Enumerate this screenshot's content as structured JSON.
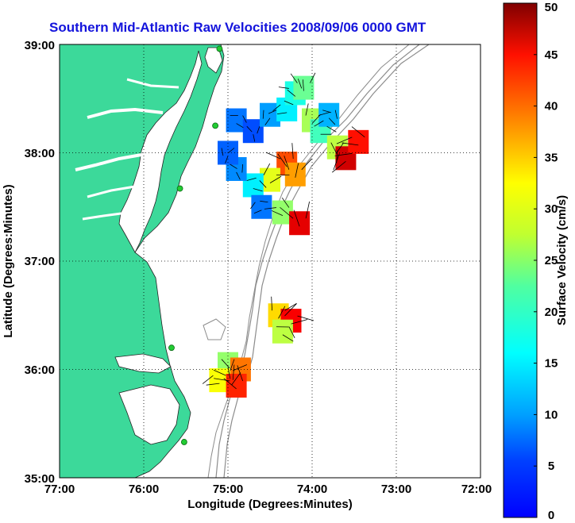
{
  "chart_data": {
    "type": "heatmap",
    "title": "Southern Mid-Atlantic Raw Velocities 2008/09/06 0000 GMT",
    "xlabel": "Longitude (Degrees:Minutes)",
    "ylabel": "Latitude (Degrees:Minutes)",
    "colorbar_label": "Surface Velocity (cm/s)",
    "x_ticks": [
      "77:00",
      "76:00",
      "75:00",
      "74:00",
      "73:00",
      "72:00"
    ],
    "y_ticks": [
      "35:00",
      "36:00",
      "37:00",
      "38:00",
      "39:00"
    ],
    "xlim": [
      -77,
      -72
    ],
    "ylim": [
      35,
      39
    ],
    "colorbar_ticks": [
      0,
      5,
      10,
      15,
      20,
      25,
      30,
      35,
      40,
      45,
      50
    ],
    "colorbar_range": [
      0,
      50
    ],
    "grid": "dotted",
    "colors": {
      "title": "#1414dc",
      "land": "#3cd99a",
      "station": "#22cc33"
    },
    "stations": [
      {
        "lon": -75.1,
        "lat": 38.96
      },
      {
        "lon": -75.15,
        "lat": 38.25
      },
      {
        "lon": -75.57,
        "lat": 37.67
      },
      {
        "lon": -75.67,
        "lat": 36.2
      },
      {
        "lon": -75.52,
        "lat": 35.33
      }
    ],
    "velocity_cells": [
      {
        "lon": -74.9,
        "lat": 38.3,
        "v": 12
      },
      {
        "lon": -74.7,
        "lat": 38.2,
        "v": 10
      },
      {
        "lon": -74.5,
        "lat": 38.35,
        "v": 14
      },
      {
        "lon": -74.3,
        "lat": 38.4,
        "v": 18
      },
      {
        "lon": -74.2,
        "lat": 38.55,
        "v": 20
      },
      {
        "lon": -74.1,
        "lat": 38.6,
        "v": 24
      },
      {
        "lon": -74.0,
        "lat": 38.3,
        "v": 27
      },
      {
        "lon": -73.9,
        "lat": 38.2,
        "v": 22
      },
      {
        "lon": -73.8,
        "lat": 38.35,
        "v": 15
      },
      {
        "lon": -73.7,
        "lat": 38.05,
        "v": 28
      },
      {
        "lon": -73.6,
        "lat": 37.95,
        "v": 46
      },
      {
        "lon": -73.45,
        "lat": 38.1,
        "v": 43
      },
      {
        "lon": -74.3,
        "lat": 37.9,
        "v": 40
      },
      {
        "lon": -74.2,
        "lat": 37.8,
        "v": 36
      },
      {
        "lon": -74.5,
        "lat": 37.75,
        "v": 30
      },
      {
        "lon": -74.7,
        "lat": 37.7,
        "v": 18
      },
      {
        "lon": -74.9,
        "lat": 37.85,
        "v": 13
      },
      {
        "lon": -75.0,
        "lat": 38.0,
        "v": 11
      },
      {
        "lon": -74.6,
        "lat": 37.5,
        "v": 12
      },
      {
        "lon": -74.35,
        "lat": 37.45,
        "v": 26
      },
      {
        "lon": -74.15,
        "lat": 37.35,
        "v": 45
      },
      {
        "lon": -74.4,
        "lat": 36.5,
        "v": 33
      },
      {
        "lon": -74.25,
        "lat": 36.45,
        "v": 44
      },
      {
        "lon": -74.35,
        "lat": 36.35,
        "v": 28
      },
      {
        "lon": -75.0,
        "lat": 36.05,
        "v": 26
      },
      {
        "lon": -74.85,
        "lat": 36.0,
        "v": 38
      },
      {
        "lon": -75.1,
        "lat": 35.9,
        "v": 31
      },
      {
        "lon": -74.9,
        "lat": 35.85,
        "v": 42
      }
    ]
  }
}
